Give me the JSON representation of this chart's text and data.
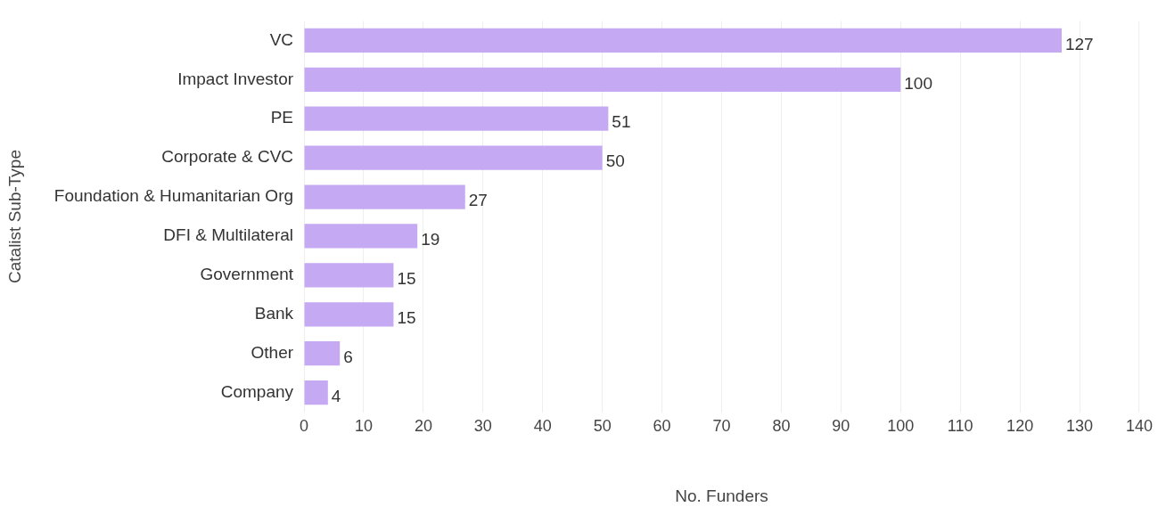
{
  "chart_data": {
    "type": "bar",
    "orientation": "horizontal",
    "xlabel": "No. Funders",
    "ylabel": "Catalist Sub-Type",
    "categories": [
      "VC",
      "Impact Investor",
      "PE",
      "Corporate & CVC",
      "Foundation & Humanitarian Org",
      "DFI & Multilateral",
      "Government",
      "Bank",
      "Other",
      "Company"
    ],
    "values": [
      127,
      100,
      51,
      50,
      27,
      19,
      15,
      15,
      6,
      4
    ],
    "color": "#c5a9f3",
    "xlim": [
      0,
      140
    ],
    "xticks": [
      0,
      10,
      20,
      30,
      40,
      50,
      60,
      70,
      80,
      90,
      100,
      110,
      120,
      130,
      140
    ],
    "grid": "x",
    "data_labels": true,
    "legend": false
  }
}
